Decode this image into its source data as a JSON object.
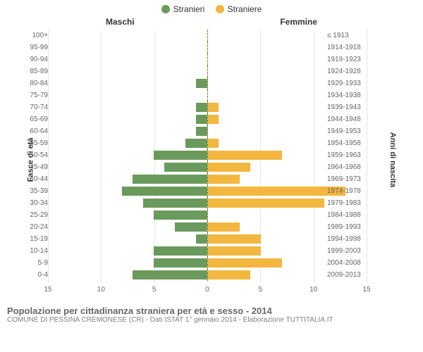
{
  "legend": {
    "male": {
      "label": "Stranieri",
      "color": "#6a9a5b"
    },
    "female": {
      "label": "Straniere",
      "color": "#f3b63f"
    }
  },
  "headers": {
    "left": "Maschi",
    "right": "Femmine",
    "axis_left": "Fasce di età",
    "axis_right": "Anni di nascita"
  },
  "chart": {
    "type": "population-pyramid",
    "xlim": 15,
    "xticks": [
      15,
      10,
      5,
      0,
      5,
      10,
      15
    ],
    "grid_color": "#e6e6e6",
    "center_line_color": "#808000",
    "background_color": "#ffffff",
    "label_fontsize": 10,
    "rows": [
      {
        "age": "100+",
        "year": "≤ 1913",
        "m": 0,
        "f": 0
      },
      {
        "age": "95-99",
        "year": "1914-1918",
        "m": 0,
        "f": 0
      },
      {
        "age": "90-94",
        "year": "1919-1923",
        "m": 0,
        "f": 0
      },
      {
        "age": "85-89",
        "year": "1924-1928",
        "m": 0,
        "f": 0
      },
      {
        "age": "80-84",
        "year": "1929-1933",
        "m": 1,
        "f": 0
      },
      {
        "age": "75-79",
        "year": "1934-1938",
        "m": 0,
        "f": 0
      },
      {
        "age": "70-74",
        "year": "1939-1943",
        "m": 1,
        "f": 1
      },
      {
        "age": "65-69",
        "year": "1944-1948",
        "m": 1,
        "f": 1
      },
      {
        "age": "60-64",
        "year": "1949-1953",
        "m": 1,
        "f": 0
      },
      {
        "age": "55-59",
        "year": "1954-1958",
        "m": 2,
        "f": 1
      },
      {
        "age": "50-54",
        "year": "1959-1963",
        "m": 5,
        "f": 7
      },
      {
        "age": "45-49",
        "year": "1964-1968",
        "m": 4,
        "f": 4
      },
      {
        "age": "40-44",
        "year": "1969-1973",
        "m": 7,
        "f": 3
      },
      {
        "age": "35-39",
        "year": "1974-1978",
        "m": 8,
        "f": 13
      },
      {
        "age": "30-34",
        "year": "1979-1983",
        "m": 6,
        "f": 11
      },
      {
        "age": "25-29",
        "year": "1984-1988",
        "m": 5,
        "f": 0
      },
      {
        "age": "20-24",
        "year": "1989-1993",
        "m": 3,
        "f": 3
      },
      {
        "age": "15-19",
        "year": "1994-1998",
        "m": 1,
        "f": 5
      },
      {
        "age": "10-14",
        "year": "1999-2003",
        "m": 5,
        "f": 5
      },
      {
        "age": "5-9",
        "year": "2004-2008",
        "m": 5,
        "f": 7
      },
      {
        "age": "0-4",
        "year": "2009-2013",
        "m": 7,
        "f": 4
      }
    ]
  },
  "footer": {
    "title": "Popolazione per cittadinanza straniera per età e sesso - 2014",
    "subtitle": "COMUNE DI PESSINA CREMONESE (CR) - Dati ISTAT 1° gennaio 2014 - Elaborazione TUTTITALIA.IT"
  }
}
